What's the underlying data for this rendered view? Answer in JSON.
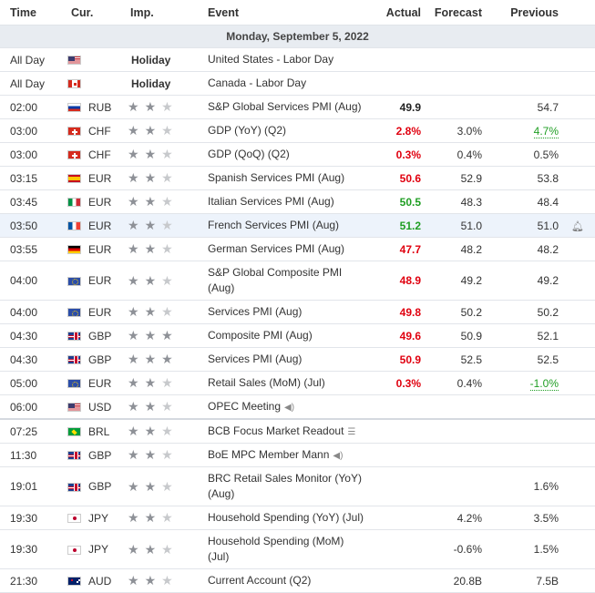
{
  "headers": {
    "time": "Time",
    "cur": "Cur.",
    "imp": "Imp.",
    "event": "Event",
    "actual": "Actual",
    "forecast": "Forecast",
    "previous": "Previous"
  },
  "date_heading": "Monday, September 5, 2022",
  "rows": [
    {
      "time": "All Day",
      "flag": "us",
      "cur": "",
      "holiday": "Holiday",
      "event": "United States - Labor Day"
    },
    {
      "time": "All Day",
      "flag": "ca",
      "cur": "",
      "holiday": "Holiday",
      "event": "Canada - Labor Day"
    },
    {
      "time": "02:00",
      "flag": "ru",
      "cur": "RUB",
      "stars": 2,
      "event": "S&P Global Services PMI (Aug)",
      "actual": "49.9",
      "actual_color": "black",
      "forecast": "",
      "previous": "54.7"
    },
    {
      "time": "03:00",
      "flag": "ch",
      "cur": "CHF",
      "stars": 2,
      "event": "GDP (YoY) (Q2)",
      "actual": "2.8%",
      "actual_color": "red",
      "forecast": "3.0%",
      "previous": "4.7%",
      "previous_revised": "green"
    },
    {
      "time": "03:00",
      "flag": "ch",
      "cur": "CHF",
      "stars": 2,
      "event": "GDP (QoQ) (Q2)",
      "actual": "0.3%",
      "actual_color": "red",
      "forecast": "0.4%",
      "previous": "0.5%"
    },
    {
      "time": "03:15",
      "flag": "es",
      "cur": "EUR",
      "stars": 2,
      "event": "Spanish Services PMI (Aug)",
      "actual": "50.6",
      "actual_color": "red",
      "forecast": "52.9",
      "previous": "53.8"
    },
    {
      "time": "03:45",
      "flag": "it",
      "cur": "EUR",
      "stars": 2,
      "event": "Italian Services PMI (Aug)",
      "actual": "50.5",
      "actual_color": "green",
      "forecast": "48.3",
      "previous": "48.4"
    },
    {
      "time": "03:50",
      "flag": "fr",
      "cur": "EUR",
      "stars": 2,
      "event": "French Services PMI (Aug)",
      "actual": "51.2",
      "actual_color": "green",
      "forecast": "51.0",
      "previous": "51.0",
      "highlight": true,
      "bell": "bell-icon"
    },
    {
      "time": "03:55",
      "flag": "de",
      "cur": "EUR",
      "stars": 2,
      "event": "German Services PMI (Aug)",
      "actual": "47.7",
      "actual_color": "red",
      "forecast": "48.2",
      "previous": "48.2"
    },
    {
      "time": "04:00",
      "flag": "eu",
      "cur": "EUR",
      "stars": 2,
      "event": "S&P Global Composite PMI (Aug)",
      "actual": "48.9",
      "actual_color": "red",
      "forecast": "49.2",
      "previous": "49.2",
      "tall": true
    },
    {
      "time": "04:00",
      "flag": "eu",
      "cur": "EUR",
      "stars": 2,
      "event": "Services PMI (Aug)",
      "actual": "49.8",
      "actual_color": "red",
      "forecast": "50.2",
      "previous": "50.2"
    },
    {
      "time": "04:30",
      "flag": "gb",
      "cur": "GBP",
      "stars": 3,
      "event": "Composite PMI (Aug)",
      "actual": "49.6",
      "actual_color": "red",
      "forecast": "50.9",
      "previous": "52.1"
    },
    {
      "time": "04:30",
      "flag": "gb",
      "cur": "GBP",
      "stars": 3,
      "event": "Services PMI (Aug)",
      "actual": "50.9",
      "actual_color": "red",
      "forecast": "52.5",
      "previous": "52.5"
    },
    {
      "time": "05:00",
      "flag": "eu",
      "cur": "EUR",
      "stars": 2,
      "event": "Retail Sales (MoM) (Jul)",
      "actual": "0.3%",
      "actual_color": "red",
      "forecast": "0.4%",
      "previous": "-1.0%",
      "previous_revised": "green"
    },
    {
      "time": "06:00",
      "flag": "us",
      "cur": "USD",
      "stars": 2,
      "event": "OPEC Meeting",
      "event_icon": "speaker-icon",
      "actual": "",
      "forecast": "",
      "previous": "",
      "sep": true
    },
    {
      "time": "07:25",
      "flag": "br",
      "cur": "BRL",
      "stars": 2,
      "event": "BCB Focus Market Readout",
      "event_icon": "document-icon",
      "actual": "",
      "forecast": "",
      "previous": ""
    },
    {
      "time": "11:30",
      "flag": "gb",
      "cur": "GBP",
      "stars": 2,
      "event": "BoE MPC Member Mann",
      "event_icon": "speaker-icon",
      "actual": "",
      "forecast": "",
      "previous": ""
    },
    {
      "time": "19:01",
      "flag": "gb",
      "cur": "GBP",
      "stars": 2,
      "event": "BRC Retail Sales Monitor (YoY) (Aug)",
      "actual": "",
      "forecast": "",
      "previous": "1.6%",
      "tall": true
    },
    {
      "time": "19:30",
      "flag": "jp",
      "cur": "JPY",
      "stars": 2,
      "event": "Household Spending (YoY) (Jul)",
      "actual": "",
      "forecast": "4.2%",
      "previous": "3.5%"
    },
    {
      "time": "19:30",
      "flag": "jp",
      "cur": "JPY",
      "stars": 2,
      "event": "Household Spending (MoM) (Jul)",
      "actual": "",
      "forecast": "-0.6%",
      "previous": "1.5%",
      "tall": true
    },
    {
      "time": "21:30",
      "flag": "au",
      "cur": "AUD",
      "stars": 2,
      "event": "Current Account (Q2)",
      "actual": "",
      "forecast": "20.8B",
      "previous": "7.5B"
    }
  ]
}
